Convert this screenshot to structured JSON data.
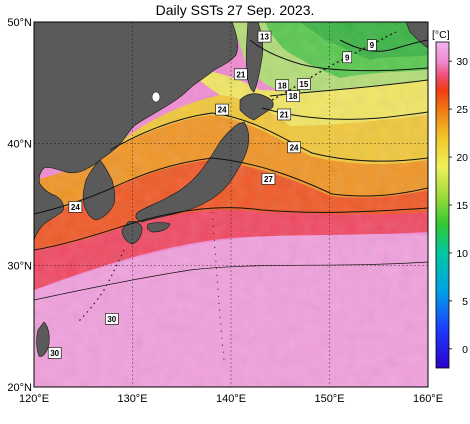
{
  "title": "Daily SSTs 27 Sep. 2023.",
  "map": {
    "lon_range": [
      120,
      160
    ],
    "lat_range": [
      20,
      50
    ],
    "lon_ticks": [
      {
        "value": 120,
        "label": "120°E"
      },
      {
        "value": 130,
        "label": "130°E"
      },
      {
        "value": 140,
        "label": "140°E"
      },
      {
        "value": 150,
        "label": "150°E"
      },
      {
        "value": 160,
        "label": "160°E"
      }
    ],
    "lat_ticks": [
      {
        "value": 50,
        "label": "50°N"
      },
      {
        "value": 40,
        "label": "40°N"
      },
      {
        "value": 30,
        "label": "30°N"
      },
      {
        "value": 20,
        "label": "20°N"
      }
    ],
    "land_color": "#5a5a5a",
    "grid": true
  },
  "colorbar": {
    "unit": "[°C]",
    "min": -2,
    "max": 32,
    "ticks": [
      {
        "value": 30,
        "label": "30"
      },
      {
        "value": 25,
        "label": "25"
      },
      {
        "value": 20,
        "label": "20"
      },
      {
        "value": 15,
        "label": "15"
      },
      {
        "value": 10,
        "label": "10"
      },
      {
        "value": 5,
        "label": "5"
      },
      {
        "value": 0,
        "label": "0"
      }
    ],
    "stops": [
      {
        "t": -2,
        "color": "#2a00c8"
      },
      {
        "t": 2,
        "color": "#1e3cff"
      },
      {
        "t": 6,
        "color": "#00a0e6"
      },
      {
        "t": 10,
        "color": "#00c8a0"
      },
      {
        "t": 13,
        "color": "#32c832"
      },
      {
        "t": 16,
        "color": "#a0dc3c"
      },
      {
        "t": 19,
        "color": "#f0f05a"
      },
      {
        "t": 22,
        "color": "#f0c828"
      },
      {
        "t": 25,
        "color": "#f07814"
      },
      {
        "t": 27,
        "color": "#f03c14"
      },
      {
        "t": 28.5,
        "color": "#f05078"
      },
      {
        "t": 30,
        "color": "#f08cd2"
      },
      {
        "t": 32,
        "color": "#f0b4f0"
      }
    ]
  },
  "contour_labels": [
    {
      "value": "13",
      "lon": 143.4,
      "lat": 48.8
    },
    {
      "value": "9",
      "lon": 154.3,
      "lat": 48.1
    },
    {
      "value": "9",
      "lon": 151.8,
      "lat": 47.1
    },
    {
      "value": "21",
      "lon": 141.0,
      "lat": 45.7
    },
    {
      "value": "18",
      "lon": 145.2,
      "lat": 44.8
    },
    {
      "value": "15",
      "lon": 147.4,
      "lat": 44.9
    },
    {
      "value": "18",
      "lon": 146.3,
      "lat": 43.9
    },
    {
      "value": "24",
      "lon": 139.1,
      "lat": 42.8
    },
    {
      "value": "21",
      "lon": 145.4,
      "lat": 42.4
    },
    {
      "value": "24",
      "lon": 146.4,
      "lat": 39.7
    },
    {
      "value": "27",
      "lon": 143.8,
      "lat": 37.1
    },
    {
      "value": "24",
      "lon": 124.2,
      "lat": 34.8
    },
    {
      "value": "30",
      "lon": 127.9,
      "lat": 25.6
    },
    {
      "value": "30",
      "lon": 122.1,
      "lat": 22.8
    }
  ]
}
